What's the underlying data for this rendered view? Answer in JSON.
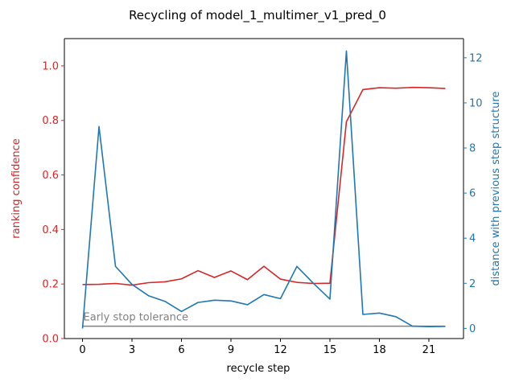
{
  "chart_data": {
    "type": "line",
    "title": "Recycling of model_1_multimer_v1_pred_0",
    "xlabel": "recycle step",
    "ylabel_left": "ranking confidence",
    "ylabel_right": "distance with previous step structure",
    "xlim": [
      -1.1,
      23.1
    ],
    "ylim_left": [
      0.0,
      1.1
    ],
    "ylim_right": [
      -0.45,
      12.85
    ],
    "x_ticks": [
      0,
      3,
      6,
      9,
      12,
      15,
      18,
      21
    ],
    "y_ticks_left": [
      0.0,
      0.2,
      0.4,
      0.6,
      0.8,
      1.0
    ],
    "y_ticks_left_labels": [
      "0.0",
      "0.2",
      "0.4",
      "0.6",
      "0.8",
      "1.0"
    ],
    "y_ticks_right": [
      0,
      2,
      4,
      6,
      8,
      10,
      12
    ],
    "grid": false,
    "colors": {
      "left_series": "#d62728",
      "right_series": "#1f77b4",
      "tolerance": "#808080"
    },
    "series": [
      {
        "axis": "left",
        "x": [
          0,
          1,
          2,
          3,
          4,
          5,
          6,
          7,
          8,
          9,
          10,
          11,
          12,
          13,
          14,
          15,
          16,
          17,
          18,
          19,
          20,
          21,
          22
        ],
        "values": [
          0.198,
          0.199,
          0.202,
          0.196,
          0.205,
          0.208,
          0.219,
          0.249,
          0.224,
          0.248,
          0.216,
          0.265,
          0.218,
          0.206,
          0.202,
          0.203,
          0.795,
          0.913,
          0.92,
          0.918,
          0.921,
          0.92,
          0.917
        ]
      },
      {
        "axis": "right",
        "x": [
          0,
          1,
          2,
          3,
          4,
          5,
          6,
          7,
          8,
          9,
          10,
          11,
          12,
          13,
          14,
          15,
          16,
          17,
          18,
          19,
          20,
          21,
          22
        ],
        "values": [
          0.0,
          8.95,
          2.75,
          1.95,
          1.45,
          1.2,
          0.75,
          1.15,
          1.25,
          1.22,
          1.05,
          1.5,
          1.32,
          2.75,
          2.0,
          1.3,
          12.3,
          0.62,
          0.68,
          0.52,
          0.1,
          0.08,
          0.09
        ]
      }
    ],
    "tolerance": {
      "label": "Early stop tolerance",
      "value": 0.1,
      "axis": "right",
      "x_range": [
        0,
        22
      ]
    }
  }
}
